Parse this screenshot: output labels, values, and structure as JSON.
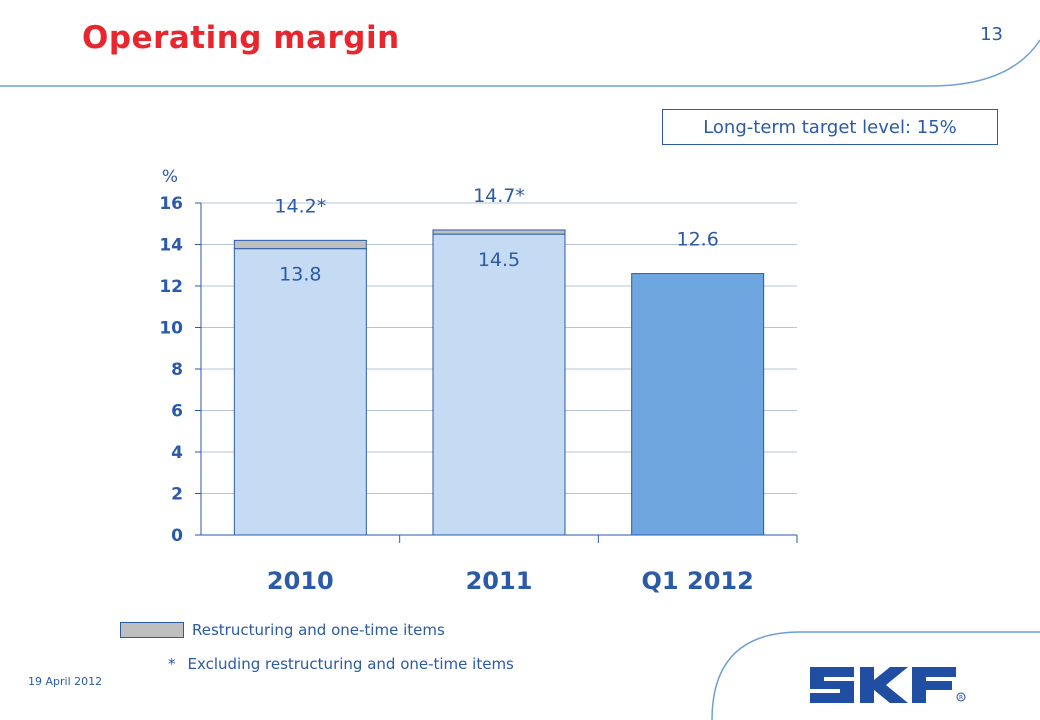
{
  "header": {
    "title": "Operating margin",
    "page_number": "13"
  },
  "target_box": {
    "text": "Long-term target level: 15%"
  },
  "chart_data": {
    "type": "bar",
    "stacked": true,
    "y_unit_label": "%",
    "categories": [
      "2010",
      "2011",
      "Q1 2012"
    ],
    "series": [
      {
        "name": "",
        "values": [
          13.8,
          14.5,
          12.6
        ],
        "colors": [
          "#c5dbf3",
          "#c5dbf3",
          "#6ea6e0"
        ]
      },
      {
        "name": "Restructuring and one-time items",
        "values": [
          0.4,
          0.2,
          0
        ],
        "color": "#bfbfbf"
      }
    ],
    "inside_labels": [
      "13.8",
      "14.5",
      ""
    ],
    "top_labels": [
      "14.2*",
      "14.7*",
      "12.6"
    ],
    "ylim": [
      0,
      16
    ],
    "yticks": [
      "0",
      "2",
      "4",
      "6",
      "8",
      "10",
      "12",
      "14",
      "16"
    ],
    "grid": true,
    "axis_color": "#2a5aa8",
    "grid_color": "#b7c4da",
    "bar_outline_color": "#2a5aa8"
  },
  "legend": {
    "item": "Restructuring and one-time items"
  },
  "footnote": {
    "star": "*",
    "text": "Excluding restructuring and one-time items"
  },
  "footer": {
    "date": "19 April 2012",
    "logo_text": "SKF"
  },
  "colors": {
    "title_red": "#e8262d",
    "text_blue": "#2a5aa8",
    "logo_blue": "#1f4ea3"
  }
}
